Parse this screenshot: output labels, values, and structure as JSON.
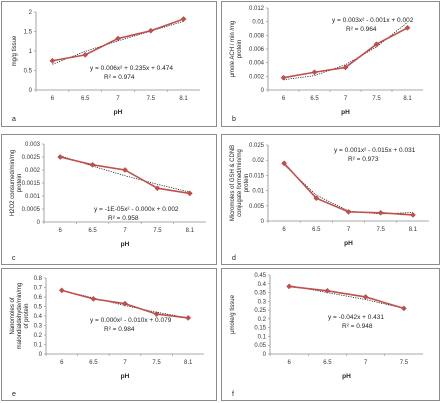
{
  "colors": {
    "series": "#c0504d",
    "trend": "#000000",
    "axis": "#8c8c8c",
    "border": "#8c8c8c"
  },
  "chart_data": [
    {
      "type": "line",
      "letter": "a",
      "ylabel": "mg/g tissue",
      "xlabel": "pH",
      "x_ticks": [
        "6",
        "6.5",
        "7",
        "7.5",
        "8.1"
      ],
      "y_ticks": [
        "0",
        "0.5",
        "1",
        "1.5",
        "2"
      ],
      "ylim": [
        0,
        2
      ],
      "series": [
        {
          "values": [
            0.75,
            0.9,
            1.32,
            1.52,
            1.82
          ]
        }
      ],
      "trend_values": [
        0.66,
        0.99,
        1.26,
        1.51,
        1.76
      ],
      "equation": "y = 0.006x² + 0.235x + 0.474",
      "r2": "R² = 0.974"
    },
    {
      "type": "line",
      "letter": "b",
      "ylabel": "μmole ACH / min /mg protein",
      "xlabel": "pH",
      "x_ticks": [
        "6",
        "6.5",
        "7",
        "7.5",
        "8.1"
      ],
      "y_ticks": [
        "0",
        "0.002",
        "0.004",
        "0.006",
        "0.008",
        "0.01",
        "0.012"
      ],
      "ylim": [
        0,
        0.012
      ],
      "series": [
        {
          "values": [
            0.0018,
            0.0026,
            0.0033,
            0.0067,
            0.0091
          ]
        }
      ],
      "trend_values": [
        0.0015,
        0.0021,
        0.0037,
        0.0063,
        0.0099
      ],
      "equation": "y = 0.003x² - 0.001x + 0.002",
      "r2": "R² = 0.964"
    },
    {
      "type": "line",
      "letter": "c",
      "ylabel": "H2O2 consumed/min/mg protein",
      "xlabel": "pH",
      "x_ticks": [
        "6",
        "6.5",
        "7",
        "7.5",
        "8.1"
      ],
      "y_ticks": [
        "0",
        "0.0005",
        "0.001",
        "0.0015",
        "0.002",
        "0.0025",
        "0.003"
      ],
      "ylim": [
        0,
        0.003
      ],
      "series": [
        {
          "values": [
            0.0025,
            0.0022,
            0.002,
            0.0013,
            0.0011
          ]
        }
      ],
      "trend_values": [
        0.00255,
        0.00215,
        0.00178,
        0.00145,
        0.00115
      ],
      "equation": "y = -1E-05x² - 0.000x + 0.002",
      "r2": "R² = 0.958"
    },
    {
      "type": "line",
      "letter": "d",
      "ylabel": "Micromoles of GSH & CDNB conjugate formed/min/mg protein",
      "xlabel": "pH",
      "x_ticks": [
        "6",
        "6.5",
        "7",
        "7.5",
        "8.1"
      ],
      "y_ticks": [
        "0",
        "0.005",
        "0.01",
        "0.015",
        "0.02",
        "0.025"
      ],
      "ylim": [
        0,
        0.025
      ],
      "series": [
        {
          "values": [
            0.019,
            0.0075,
            0.003,
            0.0027,
            0.002
          ]
        }
      ],
      "trend_values": [
        0.0185,
        0.0085,
        0.0033,
        0.0023,
        0.0028
      ],
      "equation": "y = 0.001x² - 0.015x + 0.031",
      "r2": "R² = 0.973"
    },
    {
      "type": "line",
      "letter": "e",
      "ylabel": "Nanomoles of malondialdehyde/min/mg of protein",
      "xlabel": "pH",
      "x_ticks": [
        "6",
        "6.5",
        "7",
        "7.5",
        "8.1"
      ],
      "y_ticks": [
        "0",
        "0.1",
        "0.2",
        "0.3",
        "0.4",
        "0.5",
        "0.6",
        "0.7",
        "0.8"
      ],
      "ylim": [
        0,
        0.8
      ],
      "series": [
        {
          "values": [
            0.67,
            0.58,
            0.53,
            0.42,
            0.38
          ]
        }
      ],
      "trend_values": [
        0.67,
        0.59,
        0.51,
        0.44,
        0.38
      ],
      "equation": "y = 0.000x² - 0.010x + 0.079",
      "r2": "R² = 0.984"
    },
    {
      "type": "line",
      "letter": "f",
      "ylabel": "μmole/g tissue",
      "xlabel": "pH",
      "x_ticks": [
        "6",
        "6.5",
        "7",
        "7.5"
      ],
      "y_ticks": [
        "0",
        "0.05",
        "0.1",
        "0.15",
        "0.2",
        "0.25",
        "0.3",
        "0.35",
        "0.4",
        "0.45"
      ],
      "ylim": [
        0,
        0.45
      ],
      "series": [
        {
          "values": [
            0.385,
            0.36,
            0.325,
            0.26
          ]
        }
      ],
      "trend_values": [
        0.39,
        0.35,
        0.31,
        0.26
      ],
      "equation": "y = -0.042x + 0.431",
      "r2": "R² = 0.948"
    }
  ]
}
